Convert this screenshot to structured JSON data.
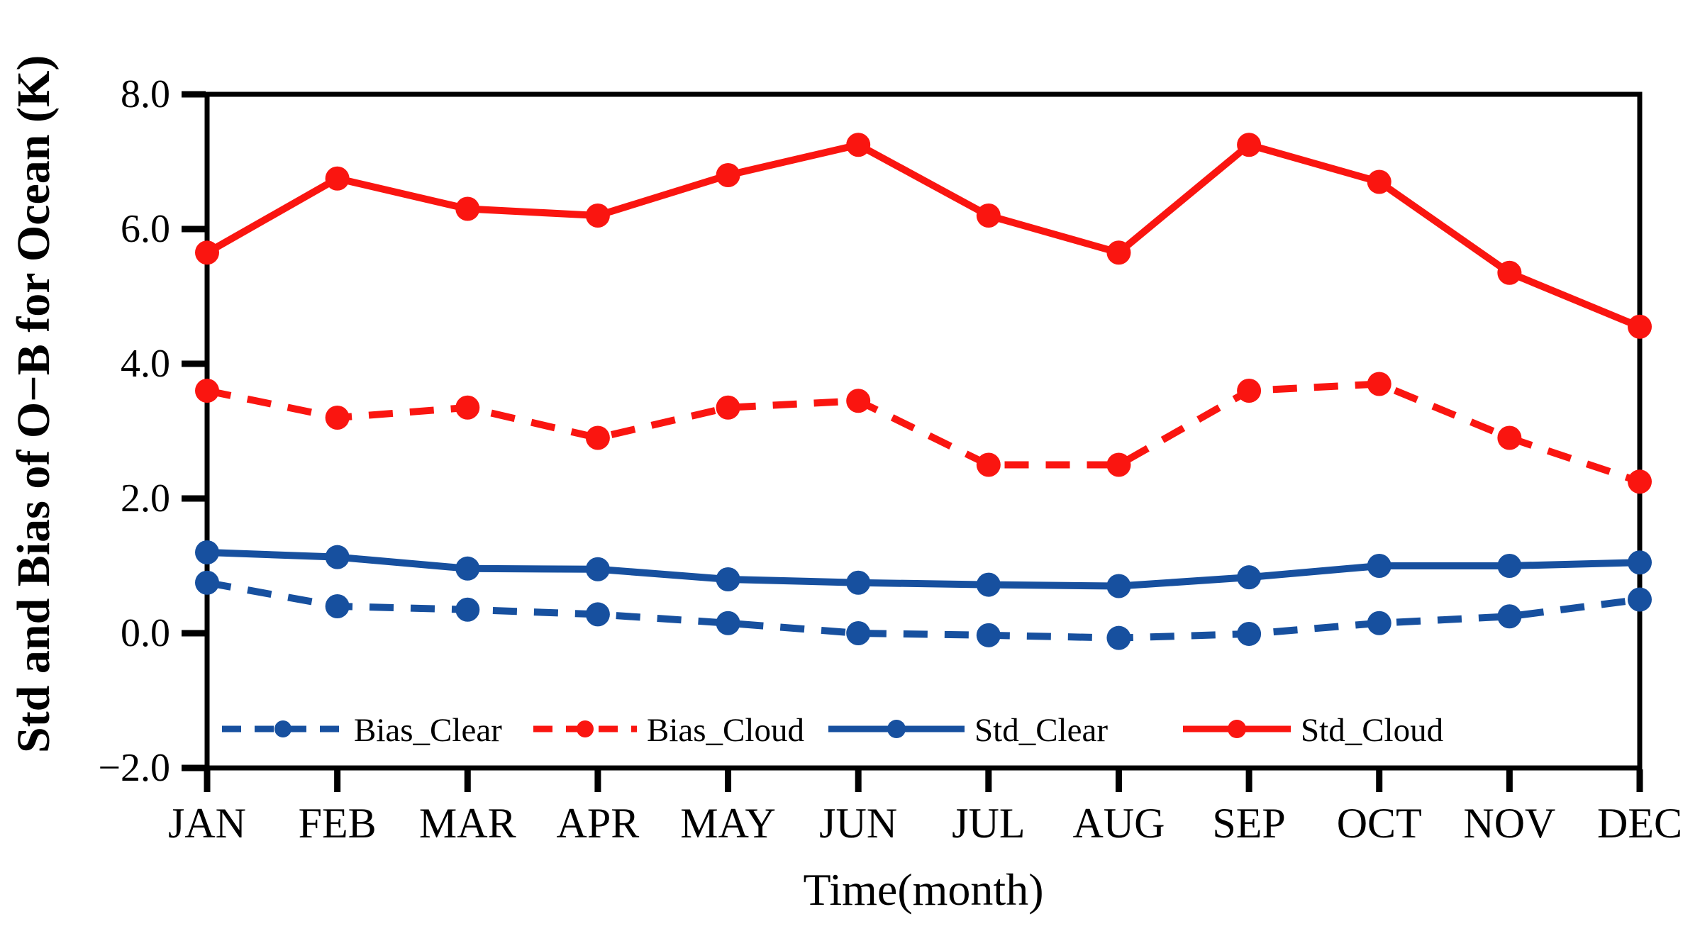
{
  "figure": {
    "background": "#ffffff"
  },
  "chart_data": {
    "type": "line",
    "title": "",
    "xlabel": "Time(month)",
    "ylabel": "Std and Bias of O−B for Ocean (K)",
    "categories": [
      "JAN",
      "FEB",
      "MAR",
      "APR",
      "MAY",
      "JUN",
      "JUL",
      "AUG",
      "SEP",
      "OCT",
      "NOV",
      "DEC"
    ],
    "ylim": [
      -2.0,
      8.0
    ],
    "y_ticks": [
      -2.0,
      0.0,
      2.0,
      4.0,
      6.0,
      8.0
    ],
    "y_tick_labels": [
      "−2.0",
      "0.0",
      "2.0",
      "4.0",
      "6.0",
      "8.0"
    ],
    "grid": false,
    "legend_position": "inside-bottom",
    "frame_color": "#000000",
    "series": [
      {
        "name": "Bias_Clear",
        "color": "#17509f",
        "line_style": "dashed",
        "marker": "circle",
        "values": [
          0.75,
          0.4,
          0.35,
          0.28,
          0.15,
          0.0,
          -0.03,
          -0.07,
          -0.01,
          0.15,
          0.25,
          0.5
        ]
      },
      {
        "name": "Bias_Cloud",
        "color": "#fa1510",
        "line_style": "dashed",
        "marker": "circle",
        "values": [
          3.6,
          3.2,
          3.35,
          2.9,
          3.35,
          3.45,
          2.5,
          2.5,
          3.6,
          3.7,
          2.9,
          2.25
        ]
      },
      {
        "name": "Std_Clear",
        "color": "#17509f",
        "line_style": "solid",
        "marker": "circle",
        "values": [
          1.2,
          1.13,
          0.96,
          0.95,
          0.8,
          0.75,
          0.72,
          0.7,
          0.83,
          1.0,
          1.0,
          1.05
        ]
      },
      {
        "name": "Std_Cloud",
        "color": "#fa1510",
        "line_style": "solid",
        "marker": "circle",
        "values": [
          5.65,
          6.75,
          6.3,
          6.2,
          6.8,
          7.25,
          6.2,
          5.65,
          7.25,
          6.7,
          5.35,
          4.55
        ]
      }
    ],
    "legend": [
      "Bias_Clear",
      "Bias_Cloud",
      "Std_Clear",
      "Std_Cloud"
    ]
  }
}
